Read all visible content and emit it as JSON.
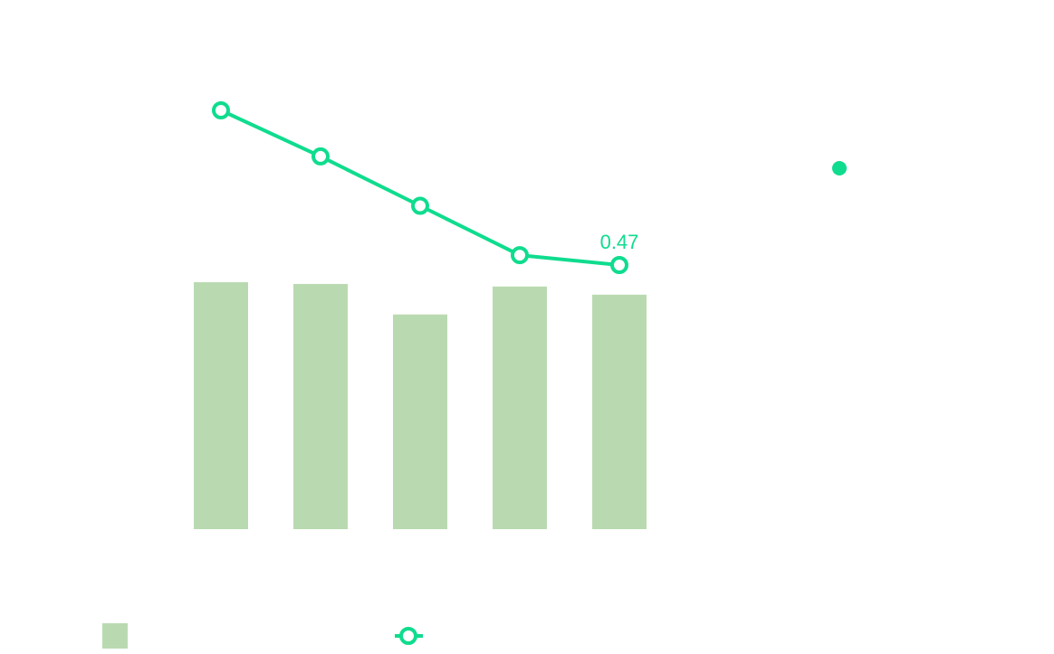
{
  "chart_data": {
    "type": "bar",
    "categories": [
      "",
      "",
      "",
      "",
      ""
    ],
    "series": [
      {
        "type": "bar",
        "values": [
          0.575,
          0.571,
          0.5,
          0.565,
          0.546
        ],
        "color": "#b9dab0"
      },
      {
        "type": "line",
        "values": [
          0.94,
          0.8,
          0.65,
          0.5,
          0.47
        ],
        "color": "#0fdc8e",
        "marker": "hollow-circle",
        "data_labels": [
          "",
          "",
          "",
          "",
          "0.47"
        ]
      }
    ],
    "extra_marker": {
      "shape": "filled-circle",
      "color": "#0fdc8e"
    },
    "title": "",
    "xlabel": "",
    "ylabel": "",
    "ylim": [
      0,
      1
    ],
    "grid": false,
    "legend": {
      "placement": "bottom",
      "entries": [
        {
          "name": "",
          "symbol": "square",
          "color": "#b9dab0"
        },
        {
          "name": "",
          "symbol": "line-hollow-circle",
          "color": "#0fdc8e"
        }
      ]
    }
  }
}
